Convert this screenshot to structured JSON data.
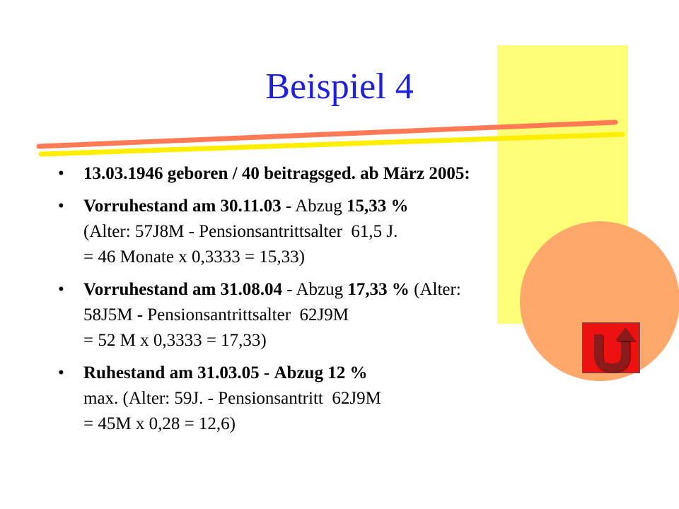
{
  "slide": {
    "title": "Beispiel 4",
    "bullets": [
      {
        "lines": [
          [
            {
              "text": "13.03.1946 geboren / 40 beitragsged. ab März 2005:",
              "bold": true
            }
          ]
        ]
      },
      {
        "lines": [
          [
            {
              "text": "Vorruhestand am 30.11.03",
              "bold": true
            },
            {
              "text": " - Abzug ",
              "bold": false
            },
            {
              "text": "15,33 %",
              "bold": true
            }
          ],
          [
            {
              "text": "(Alter: 57J8M - Pensionsantrittsalter  61,5 J.",
              "bold": false
            }
          ],
          [
            {
              "text": "= 46 Monate x 0,3333 = 15,33)",
              "bold": false
            }
          ]
        ]
      },
      {
        "lines": [
          [
            {
              "text": "Vorruhestand am 31.08.04",
              "bold": true
            },
            {
              "text": " - Abzug ",
              "bold": false
            },
            {
              "text": "17,33 %",
              "bold": true
            },
            {
              "text": " (Alter:",
              "bold": false
            }
          ],
          [
            {
              "text": "58J5M - Pensionsantrittsalter  62J9M",
              "bold": false
            }
          ],
          [
            {
              "text": "= 52 M x 0,3333 = 17,33)",
              "bold": false
            }
          ]
        ]
      },
      {
        "lines": [
          [
            {
              "text": "Ruhestand am 31.03.05",
              "bold": true
            },
            {
              "text": " - ",
              "bold": false
            },
            {
              "text": "Abzug 12 %",
              "bold": true
            }
          ],
          [
            {
              "text": "max. (Alter: 59J. - Pensionsantritt  62J9M",
              "bold": false
            }
          ],
          [
            {
              "text": "= 45M x 0,28 = 12,6)",
              "bold": false
            }
          ]
        ]
      }
    ],
    "bullet_symbol": "•"
  },
  "nav_button": {
    "icon": "u-turn-arrow-icon"
  },
  "colors": {
    "title": "#1f1fe0",
    "yellow_panel": "#ffff77",
    "orange_circle": "#ffa86b",
    "red_stripe": "#ff7a55",
    "yellow_stripe": "#ffee00",
    "nav_button_bg": "#ee1111",
    "arrow": "#8b1a1a"
  }
}
